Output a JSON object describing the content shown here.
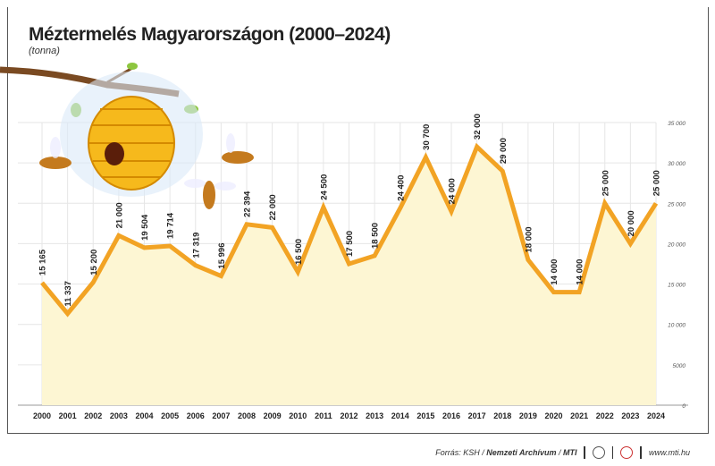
{
  "chart_data": {
    "type": "area",
    "title": "Méztermelés Magyarországon (2000–2024)",
    "subtitle": "(tonna)",
    "xlabel": "",
    "ylabel": "",
    "categories": [
      "2000",
      "2001",
      "2002",
      "2003",
      "2004",
      "2005",
      "2006",
      "2007",
      "2008",
      "2009",
      "2010",
      "2011",
      "2012",
      "2013",
      "2014",
      "2015",
      "2016",
      "2017",
      "2018",
      "2019",
      "2020",
      "2021",
      "2022",
      "2023",
      "2024"
    ],
    "values": [
      15165,
      11337,
      15200,
      21000,
      19504,
      19714,
      17319,
      15996,
      22394,
      22000,
      16500,
      24500,
      17500,
      18500,
      24400,
      30700,
      24000,
      32000,
      29000,
      18000,
      14000,
      14000,
      25000,
      20000,
      25000
    ],
    "data_labels": [
      "15 165",
      "11 337",
      "15 200",
      "21 000",
      "19 504",
      "19 714",
      "17 319",
      "15 996",
      "22 394",
      "22 000",
      "16 500",
      "24 500",
      "17 500",
      "18 500",
      "24 400",
      "30 700",
      "24 000",
      "32 000",
      "29 000",
      "18 000",
      "14 000",
      "14 000",
      "25 000",
      "20 000",
      "25 000"
    ],
    "ylim": [
      0,
      35000
    ],
    "yticks": [
      0,
      5000,
      10000,
      15000,
      20000,
      25000,
      30000,
      35000
    ],
    "ytick_labels": [
      "0",
      "5000",
      "10 000",
      "15 000",
      "20 000",
      "25 000",
      "30 000",
      "35 000"
    ],
    "y_axis_side": "right",
    "grid": true,
    "colors": {
      "line": "#f2a324",
      "fill": "#fdf6d3",
      "grid": "#e6e6e6"
    }
  },
  "footer": {
    "source_prefix": "Forrás: KSH / ",
    "source_bold": "Nemzeti Archívum",
    "source_sep": " / ",
    "source_mti": "MTI",
    "url": "www.mti.hu"
  }
}
